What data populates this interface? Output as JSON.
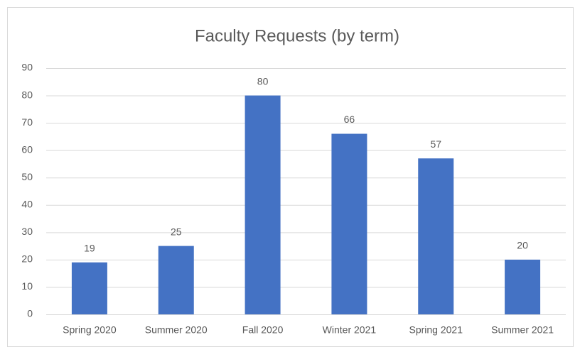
{
  "chart_data": {
    "type": "bar",
    "title": "Faculty Requests (by term)",
    "categories": [
      "Spring 2020",
      "Summer 2020",
      "Fall 2020",
      "Winter 2021",
      "Spring 2021",
      "Summer 2021"
    ],
    "values": [
      19,
      25,
      80,
      66,
      57,
      20
    ],
    "color": "#4472c4",
    "ylim": [
      0,
      90
    ],
    "yticks": [
      0,
      10,
      20,
      30,
      40,
      50,
      60,
      70,
      80,
      90
    ],
    "grid": true
  }
}
